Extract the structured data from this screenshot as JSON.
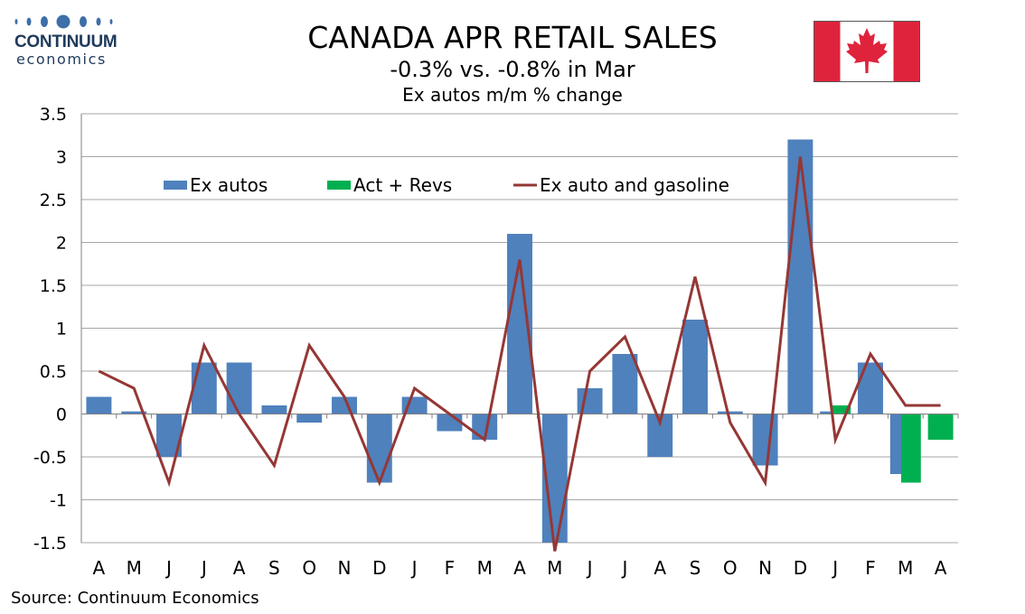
{
  "brand": {
    "name": "CONTINUUM",
    "sub": "economics",
    "dot_color": "#3d6fa8"
  },
  "header": {
    "title": "CANADA APR RETAIL SALES",
    "subtitle": "-0.3% vs. -0.8% in Mar",
    "subsubtitle": "Ex autos m/m % change"
  },
  "flag": {
    "icon": "canada-flag-icon",
    "red": "#e0233c",
    "white": "#ffffff"
  },
  "source": "Source: Continuum Economics",
  "chart_data": {
    "type": "bar",
    "categories": [
      "A",
      "M",
      "J",
      "J",
      "A",
      "S",
      "O",
      "N",
      "D",
      "J",
      "F",
      "M",
      "A",
      "M",
      "J",
      "J",
      "A",
      "S",
      "O",
      "N",
      "D",
      "J",
      "F",
      "M",
      "A"
    ],
    "ylim": [
      -1.5,
      3.5
    ],
    "yticks": [
      3.5,
      3,
      2.5,
      2,
      1.5,
      1,
      0.5,
      0,
      -0.5,
      -1,
      -1.5
    ],
    "ytick_labels": [
      "3.5",
      "3",
      "2.5",
      "2",
      "1.5",
      "1",
      "0.5",
      "0",
      "-0.5",
      "-1",
      "-1.5"
    ],
    "grid": true,
    "legend_position": "top-left",
    "series": [
      {
        "name": "Ex autos",
        "type": "bar",
        "color": "#4f81bd",
        "values": [
          0.2,
          0.03,
          -0.5,
          0.6,
          0.6,
          0.1,
          -0.1,
          0.2,
          -0.8,
          0.2,
          -0.2,
          -0.3,
          2.1,
          -1.5,
          0.3,
          0.7,
          -0.5,
          1.1,
          0.03,
          -0.6,
          3.2,
          0.03,
          0.6,
          -0.7,
          null
        ]
      },
      {
        "name": "Act + Revs",
        "type": "bar",
        "color": "#00b050",
        "values": [
          null,
          null,
          null,
          null,
          null,
          null,
          null,
          null,
          null,
          null,
          null,
          null,
          null,
          null,
          null,
          null,
          null,
          null,
          null,
          null,
          null,
          0.1,
          null,
          -0.8,
          -0.3
        ]
      },
      {
        "name": "Ex auto and gasoline",
        "type": "line",
        "color": "#953735",
        "values": [
          0.5,
          0.3,
          -0.8,
          0.8,
          0.0,
          -0.6,
          0.8,
          0.2,
          -0.8,
          0.3,
          0.0,
          -0.3,
          1.8,
          -1.6,
          0.5,
          0.9,
          -0.1,
          1.6,
          -0.1,
          -0.8,
          3.0,
          -0.3,
          0.7,
          0.1,
          0.1
        ]
      }
    ]
  }
}
